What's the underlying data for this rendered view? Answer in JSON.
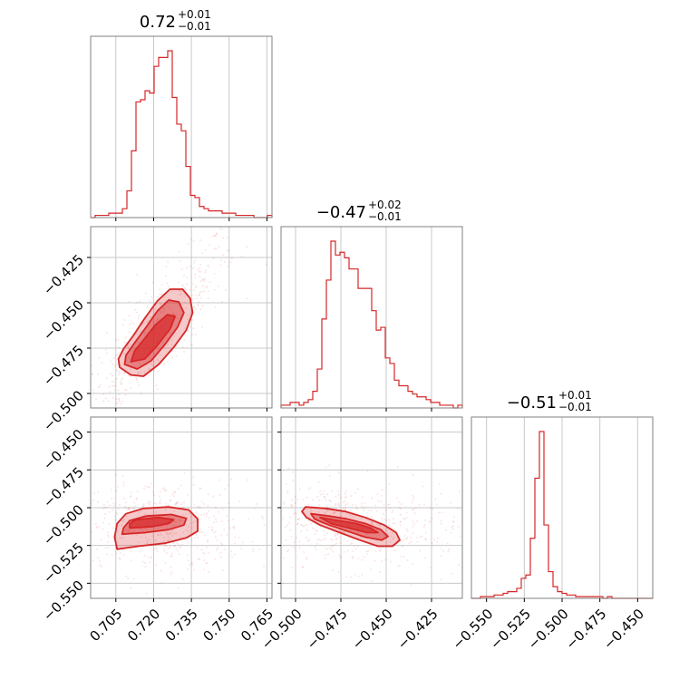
{
  "chart_data": {
    "type": "corner",
    "color": "#d62728",
    "parameters": [
      {
        "median": 0.72,
        "plus": 0.01,
        "minus": 0.01,
        "range": [
          0.695,
          0.767
        ],
        "ticks": [
          0.705,
          0.72,
          0.735,
          0.75,
          0.765
        ],
        "tick_labels": [
          "0.705",
          "0.720",
          "0.735",
          "0.750",
          "0.765"
        ]
      },
      {
        "median": -0.47,
        "plus": 0.02,
        "minus": 0.01,
        "range": [
          -0.508,
          -0.408
        ],
        "ticks": [
          -0.5,
          -0.475,
          -0.45,
          -0.425
        ],
        "tick_labels": [
          "−0.500",
          "−0.475",
          "−0.450",
          "−0.425"
        ]
      },
      {
        "median": -0.51,
        "plus": 0.01,
        "minus": 0.01,
        "range": [
          -0.56,
          -0.44
        ],
        "ticks": [
          -0.55,
          -0.525,
          -0.5,
          -0.475,
          -0.45
        ],
        "tick_labels": [
          "−0.550",
          "−0.525",
          "−0.500",
          "−0.475",
          "−0.450"
        ]
      }
    ],
    "titles": [
      {
        "main": "0.72",
        "sup": "+0.01",
        "sub": "−0.01"
      },
      {
        "main": "−0.47",
        "sup": "+0.02",
        "sub": "−0.01"
      },
      {
        "main": "−0.51",
        "sup": "+0.01",
        "sub": "−0.01"
      }
    ],
    "histograms": [
      {
        "param": 0,
        "range": [
          0.695,
          0.767
        ],
        "counts": [
          0,
          1,
          1,
          1,
          2,
          2,
          2,
          4,
          12,
          30,
          52,
          53,
          57,
          56,
          68,
          72,
          72,
          75,
          54,
          42,
          39,
          23,
          10,
          9,
          5,
          4,
          3,
          3,
          3,
          2,
          2,
          2,
          1,
          1,
          1,
          1,
          0,
          0,
          0,
          1
        ]
      },
      {
        "param": 1,
        "range": [
          -0.508,
          -0.408
        ],
        "counts": [
          1,
          1,
          2,
          2,
          1,
          2,
          3,
          6,
          14,
          32,
          46,
          60,
          55,
          56,
          54,
          50,
          50,
          43,
          43,
          43,
          35,
          28,
          29,
          18,
          16,
          10,
          8,
          8,
          6,
          5,
          4,
          4,
          3,
          2,
          2,
          1,
          1,
          1,
          0,
          1
        ]
      },
      {
        "param": 2,
        "range": [
          -0.56,
          -0.44
        ],
        "counts": [
          0,
          0,
          1,
          1,
          1,
          2,
          2,
          3,
          4,
          4,
          6,
          12,
          14,
          36,
          72,
          100,
          44,
          16,
          7,
          4,
          3,
          2,
          2,
          1,
          1,
          1,
          1,
          1,
          1,
          0,
          1,
          0,
          0,
          0,
          0,
          0,
          0,
          0,
          0,
          0
        ]
      }
    ],
    "contour_panels": [
      {
        "x_param": 0,
        "y_param": 1,
        "contours": [
          [
            [
              0.7065,
              -0.4855
            ],
            [
              0.711,
              -0.4898
            ],
            [
              0.716,
              -0.4905
            ],
            [
              0.722,
              -0.484
            ],
            [
              0.728,
              -0.4745
            ],
            [
              0.733,
              -0.465
            ],
            [
              0.7355,
              -0.4555
            ],
            [
              0.7345,
              -0.4475
            ],
            [
              0.7315,
              -0.4425
            ],
            [
              0.7265,
              -0.4425
            ],
            [
              0.7215,
              -0.449
            ],
            [
              0.7165,
              -0.4585
            ],
            [
              0.712,
              -0.468
            ],
            [
              0.708,
              -0.4755
            ],
            [
              0.706,
              -0.481
            ]
          ],
          [
            [
              0.7085,
              -0.484
            ],
            [
              0.7135,
              -0.4865
            ],
            [
              0.719,
              -0.482
            ],
            [
              0.7245,
              -0.473
            ],
            [
              0.7295,
              -0.4635
            ],
            [
              0.732,
              -0.4555
            ],
            [
              0.73,
              -0.4495
            ],
            [
              0.726,
              -0.4485
            ],
            [
              0.7215,
              -0.4545
            ],
            [
              0.717,
              -0.4635
            ],
            [
              0.7125,
              -0.472
            ],
            [
              0.709,
              -0.479
            ]
          ],
          [
            [
              0.711,
              -0.4825
            ],
            [
              0.7165,
              -0.481
            ],
            [
              0.7215,
              -0.4735
            ],
            [
              0.7265,
              -0.4645
            ],
            [
              0.7285,
              -0.4575
            ],
            [
              0.7255,
              -0.4565
            ],
            [
              0.7205,
              -0.4625
            ],
            [
              0.716,
              -0.4705
            ],
            [
              0.7125,
              -0.4765
            ]
          ]
        ]
      },
      {
        "x_param": 0,
        "y_param": 2,
        "contours": [
          [
            [
              0.7055,
              -0.5275
            ],
            [
              0.714,
              -0.5255
            ],
            [
              0.7245,
              -0.5235
            ],
            [
              0.733,
              -0.52
            ],
            [
              0.7375,
              -0.5155
            ],
            [
              0.7375,
              -0.5075
            ],
            [
              0.734,
              -0.5015
            ],
            [
              0.726,
              -0.4995
            ],
            [
              0.716,
              -0.5005
            ],
            [
              0.709,
              -0.504
            ],
            [
              0.7055,
              -0.5105
            ],
            [
              0.7045,
              -0.5195
            ]
          ],
          [
            [
              0.7075,
              -0.5175
            ],
            [
              0.7165,
              -0.5165
            ],
            [
              0.726,
              -0.5145
            ],
            [
              0.732,
              -0.5115
            ],
            [
              0.733,
              -0.507
            ],
            [
              0.727,
              -0.5045
            ],
            [
              0.717,
              -0.5055
            ],
            [
              0.7105,
              -0.5085
            ],
            [
              0.708,
              -0.5135
            ]
          ],
          [
            [
              0.7105,
              -0.5135
            ],
            [
              0.7195,
              -0.5125
            ],
            [
              0.726,
              -0.5105
            ],
            [
              0.728,
              -0.508
            ],
            [
              0.722,
              -0.5065
            ],
            [
              0.713,
              -0.508
            ],
            [
              0.7105,
              -0.5105
            ]
          ]
        ]
      },
      {
        "x_param": 1,
        "y_param": 2,
        "contours": [
          [
            [
              -0.4945,
              -0.4995
            ],
            [
              -0.4835,
              -0.5005
            ],
            [
              -0.4725,
              -0.5025
            ],
            [
              -0.4615,
              -0.5065
            ],
            [
              -0.451,
              -0.5115
            ],
            [
              -0.4445,
              -0.5165
            ],
            [
              -0.4425,
              -0.5215
            ],
            [
              -0.4465,
              -0.5255
            ],
            [
              -0.4545,
              -0.5255
            ],
            [
              -0.4645,
              -0.5215
            ],
            [
              -0.4755,
              -0.5165
            ],
            [
              -0.4865,
              -0.5115
            ],
            [
              -0.494,
              -0.5065
            ],
            [
              -0.4965,
              -0.5025
            ]
          ],
          [
            [
              -0.4915,
              -0.504
            ],
            [
              -0.4815,
              -0.5055
            ],
            [
              -0.4715,
              -0.5075
            ],
            [
              -0.4615,
              -0.5105
            ],
            [
              -0.453,
              -0.5145
            ],
            [
              -0.449,
              -0.519
            ],
            [
              -0.4525,
              -0.5215
            ],
            [
              -0.4615,
              -0.5195
            ],
            [
              -0.4715,
              -0.5155
            ],
            [
              -0.4815,
              -0.5115
            ],
            [
              -0.4895,
              -0.5075
            ]
          ],
          [
            [
              -0.4865,
              -0.5065
            ],
            [
              -0.4765,
              -0.5085
            ],
            [
              -0.4665,
              -0.5105
            ],
            [
              -0.4585,
              -0.5135
            ],
            [
              -0.4545,
              -0.5165
            ],
            [
              -0.4605,
              -0.5165
            ],
            [
              -0.4705,
              -0.5135
            ],
            [
              -0.4805,
              -0.5105
            ]
          ]
        ]
      }
    ],
    "scatter": {
      "visible": true,
      "note": "faint sample points around contours"
    },
    "grid": true,
    "legend": "none"
  }
}
